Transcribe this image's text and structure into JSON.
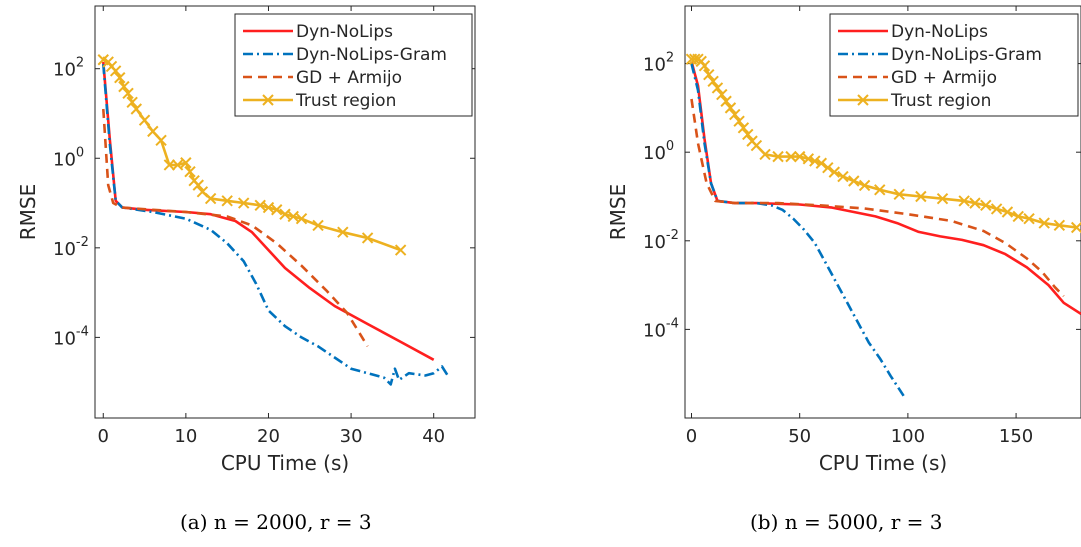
{
  "chart_data": [
    {
      "type": "line",
      "caption": "(a) n = 2000, r = 3",
      "xlabel": "CPU Time (s)",
      "ylabel": "RMSE",
      "xlim": [
        -1,
        45
      ],
      "ylim": [
        -5.8,
        3.4
      ],
      "yscale": "log",
      "xticks": [
        0,
        10,
        20,
        30,
        40
      ],
      "yticks": [
        {
          "exp": 2,
          "label": "10",
          "sup": "2"
        },
        {
          "exp": 0,
          "label": "10",
          "sup": "0"
        },
        {
          "exp": -2,
          "label": "10",
          "sup": "-2"
        },
        {
          "exp": -4,
          "label": "10",
          "sup": "-4"
        }
      ],
      "legend_position": "top-right",
      "series": [
        {
          "name": "Dyn-NoLips",
          "color": "#ff1f1f",
          "style": "solid",
          "marker": "none",
          "points": [
            [
              0,
              2.15
            ],
            [
              0.8,
              0.4
            ],
            [
              1.5,
              -0.95
            ],
            [
              2.3,
              -1.1
            ],
            [
              5,
              -1.15
            ],
            [
              10,
              -1.2
            ],
            [
              13,
              -1.25
            ],
            [
              16,
              -1.4
            ],
            [
              18,
              -1.65
            ],
            [
              20,
              -2.05
            ],
            [
              22,
              -2.45
            ],
            [
              25,
              -2.9
            ],
            [
              28,
              -3.3
            ],
            [
              32,
              -3.7
            ],
            [
              36,
              -4.1
            ],
            [
              40,
              -4.5
            ]
          ]
        },
        {
          "name": "Dyn-NoLips-Gram",
          "color": "#0072bd",
          "style": "dashdot",
          "marker": "none",
          "points": [
            [
              0,
              2.1
            ],
            [
              0.8,
              0.3
            ],
            [
              1.5,
              -0.95
            ],
            [
              2.3,
              -1.1
            ],
            [
              6,
              -1.2
            ],
            [
              10,
              -1.35
            ],
            [
              13,
              -1.6
            ],
            [
              15,
              -1.9
            ],
            [
              17,
              -2.3
            ],
            [
              18.5,
              -2.8
            ],
            [
              20,
              -3.4
            ],
            [
              22,
              -3.75
            ],
            [
              24,
              -4.0
            ],
            [
              26,
              -4.2
            ],
            [
              28,
              -4.45
            ],
            [
              30,
              -4.7
            ],
            [
              32,
              -4.8
            ],
            [
              34,
              -4.9
            ],
            [
              34.8,
              -5.05
            ],
            [
              35.3,
              -4.7
            ],
            [
              35.8,
              -4.95
            ],
            [
              37,
              -4.8
            ],
            [
              39,
              -4.85
            ],
            [
              40,
              -4.8
            ],
            [
              41,
              -4.65
            ],
            [
              41.7,
              -4.85
            ]
          ]
        },
        {
          "name": "GD + Armijo",
          "color": "#d95319",
          "style": "dash",
          "marker": "none",
          "points": [
            [
              0,
              1.1
            ],
            [
              0.6,
              -0.6
            ],
            [
              1.2,
              -1.0
            ],
            [
              2.2,
              -1.1
            ],
            [
              6,
              -1.15
            ],
            [
              10,
              -1.2
            ],
            [
              15,
              -1.3
            ],
            [
              18,
              -1.5
            ],
            [
              21,
              -1.9
            ],
            [
              24,
              -2.4
            ],
            [
              27,
              -2.95
            ],
            [
              29.5,
              -3.45
            ],
            [
              32,
              -4.2
            ]
          ]
        },
        {
          "name": "Trust region",
          "color": "#edb120",
          "style": "solid",
          "marker": "x",
          "points": [
            [
              0,
              2.2
            ],
            [
              0.6,
              2.15
            ],
            [
              1,
              2.05
            ],
            [
              1.5,
              1.95
            ],
            [
              2,
              1.8
            ],
            [
              2.5,
              1.6
            ],
            [
              3,
              1.45
            ],
            [
              3.5,
              1.25
            ],
            [
              4,
              1.1
            ],
            [
              5,
              0.85
            ],
            [
              6,
              0.6
            ],
            [
              7,
              0.4
            ],
            [
              8,
              -0.15
            ],
            [
              9,
              -0.15
            ],
            [
              10,
              -0.1
            ],
            [
              10.5,
              -0.3
            ],
            [
              11,
              -0.5
            ],
            [
              11.5,
              -0.6
            ],
            [
              12,
              -0.75
            ],
            [
              13,
              -0.9
            ],
            [
              15,
              -0.95
            ],
            [
              17,
              -1.0
            ],
            [
              19,
              -1.05
            ],
            [
              20,
              -1.1
            ],
            [
              21,
              -1.15
            ],
            [
              22,
              -1.25
            ],
            [
              23,
              -1.3
            ],
            [
              24,
              -1.35
            ],
            [
              26,
              -1.5
            ],
            [
              29,
              -1.65
            ],
            [
              32,
              -1.78
            ],
            [
              36,
              -2.05
            ]
          ]
        }
      ]
    },
    {
      "type": "line",
      "caption": "(b) n = 5000, r = 3",
      "xlabel": "CPU Time (s)",
      "ylabel": "RMSE",
      "xlim": [
        -3,
        180
      ],
      "ylim": [
        -6,
        3.3
      ],
      "yscale": "log",
      "xticks": [
        0,
        50,
        100,
        150
      ],
      "yticks": [
        {
          "exp": 2,
          "label": "10",
          "sup": "2"
        },
        {
          "exp": 0,
          "label": "10",
          "sup": "0"
        },
        {
          "exp": -2,
          "label": "10",
          "sup": "-2"
        },
        {
          "exp": -4,
          "label": "10",
          "sup": "-4"
        }
      ],
      "legend_position": "top-right",
      "series": [
        {
          "name": "Dyn-NoLips",
          "color": "#ff1f1f",
          "style": "solid",
          "marker": "none",
          "points": [
            [
              0,
              2.05
            ],
            [
              3,
              1.5
            ],
            [
              6,
              0.3
            ],
            [
              9,
              -0.7
            ],
            [
              12,
              -1.1
            ],
            [
              20,
              -1.15
            ],
            [
              30,
              -1.15
            ],
            [
              50,
              -1.18
            ],
            [
              65,
              -1.25
            ],
            [
              75,
              -1.35
            ],
            [
              85,
              -1.45
            ],
            [
              95,
              -1.6
            ],
            [
              105,
              -1.8
            ],
            [
              115,
              -1.9
            ],
            [
              125,
              -1.98
            ],
            [
              135,
              -2.1
            ],
            [
              145,
              -2.3
            ],
            [
              155,
              -2.6
            ],
            [
              165,
              -3.0
            ],
            [
              172,
              -3.4
            ],
            [
              180,
              -3.65
            ]
          ]
        },
        {
          "name": "Dyn-NoLips-Gram",
          "color": "#0072bd",
          "style": "dashdot",
          "marker": "none",
          "points": [
            [
              0,
              2.0
            ],
            [
              3,
              1.4
            ],
            [
              6,
              0.2
            ],
            [
              9,
              -0.7
            ],
            [
              12,
              -1.1
            ],
            [
              20,
              -1.15
            ],
            [
              30,
              -1.15
            ],
            [
              37,
              -1.2
            ],
            [
              42,
              -1.3
            ],
            [
              47,
              -1.5
            ],
            [
              52,
              -1.75
            ],
            [
              57,
              -2.05
            ],
            [
              62,
              -2.5
            ],
            [
              67,
              -2.95
            ],
            [
              72,
              -3.4
            ],
            [
              77,
              -3.85
            ],
            [
              82,
              -4.3
            ],
            [
              87,
              -4.65
            ],
            [
              92,
              -5.05
            ],
            [
              98,
              -5.5
            ]
          ]
        },
        {
          "name": "GD + Armijo",
          "color": "#d95319",
          "style": "dash",
          "marker": "none",
          "points": [
            [
              0,
              1.2
            ],
            [
              3,
              0.2
            ],
            [
              7,
              -0.7
            ],
            [
              11,
              -1.1
            ],
            [
              20,
              -1.15
            ],
            [
              40,
              -1.15
            ],
            [
              60,
              -1.2
            ],
            [
              80,
              -1.27
            ],
            [
              100,
              -1.4
            ],
            [
              120,
              -1.55
            ],
            [
              135,
              -1.78
            ],
            [
              145,
              -2.05
            ],
            [
              155,
              -2.4
            ],
            [
              162,
              -2.7
            ],
            [
              168,
              -3.05
            ],
            [
              172,
              -3.25
            ]
          ]
        },
        {
          "name": "Trust region",
          "color": "#edb120",
          "style": "solid",
          "marker": "x",
          "points": [
            [
              0,
              2.1
            ],
            [
              1.5,
              2.1
            ],
            [
              3,
              2.1
            ],
            [
              4.5,
              2.05
            ],
            [
              6,
              1.95
            ],
            [
              8,
              1.75
            ],
            [
              10,
              1.6
            ],
            [
              12,
              1.45
            ],
            [
              14,
              1.3
            ],
            [
              16,
              1.15
            ],
            [
              18,
              1.0
            ],
            [
              20,
              0.85
            ],
            [
              22,
              0.7
            ],
            [
              24,
              0.55
            ],
            [
              26,
              0.4
            ],
            [
              28,
              0.25
            ],
            [
              30,
              0.15
            ],
            [
              34,
              -0.05
            ],
            [
              40,
              -0.1
            ],
            [
              46,
              -0.1
            ],
            [
              50,
              -0.1
            ],
            [
              54,
              -0.15
            ],
            [
              57,
              -0.2
            ],
            [
              60,
              -0.25
            ],
            [
              63,
              -0.35
            ],
            [
              66,
              -0.45
            ],
            [
              70,
              -0.55
            ],
            [
              75,
              -0.65
            ],
            [
              80,
              -0.75
            ],
            [
              87,
              -0.85
            ],
            [
              96,
              -0.95
            ],
            [
              106,
              -1.0
            ],
            [
              116,
              -1.05
            ],
            [
              126,
              -1.1
            ],
            [
              131,
              -1.15
            ],
            [
              136,
              -1.2
            ],
            [
              141,
              -1.28
            ],
            [
              146,
              -1.35
            ],
            [
              151,
              -1.45
            ],
            [
              156,
              -1.5
            ],
            [
              163,
              -1.6
            ],
            [
              170,
              -1.65
            ],
            [
              178,
              -1.7
            ]
          ]
        }
      ]
    }
  ]
}
